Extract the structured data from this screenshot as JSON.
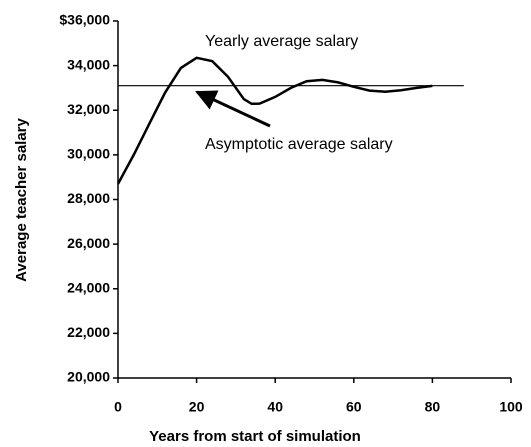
{
  "chart_data": {
    "type": "line",
    "xlabel": "Years from start of simulation",
    "ylabel": "Average teacher salary",
    "series": [
      {
        "name": "Yearly average salary",
        "color": "#000000",
        "x": [
          0,
          4,
          8,
          12,
          16,
          20,
          24,
          28,
          32,
          34,
          36,
          40,
          44,
          48,
          52,
          56,
          60,
          64,
          68,
          72,
          76,
          80
        ],
        "values": [
          28700,
          30000,
          31400,
          32800,
          33900,
          34350,
          34200,
          33500,
          32500,
          32290,
          32300,
          32600,
          33000,
          33300,
          33360,
          33250,
          33050,
          32880,
          32830,
          32900,
          33000,
          33090
        ]
      },
      {
        "name": "Asymptotic average salary",
        "color": "#000000",
        "x": [
          0,
          88
        ],
        "values": [
          33100,
          33100
        ]
      }
    ],
    "xlim": [
      0,
      100
    ],
    "xticks": [
      0,
      20,
      40,
      60,
      80,
      100
    ],
    "ylim": [
      20000,
      36000
    ],
    "yticks": [
      {
        "value": 20000,
        "label": "20,000"
      },
      {
        "value": 22000,
        "label": "22,000"
      },
      {
        "value": 24000,
        "label": "24,000"
      },
      {
        "value": 26000,
        "label": "26,000"
      },
      {
        "value": 28000,
        "label": "28,000"
      },
      {
        "value": 30000,
        "label": "30,000"
      },
      {
        "value": 32000,
        "label": "32,000"
      },
      {
        "value": 34000,
        "label": "34,000"
      },
      {
        "value": 36000,
        "label": "$36,000"
      }
    ],
    "grid": false
  }
}
